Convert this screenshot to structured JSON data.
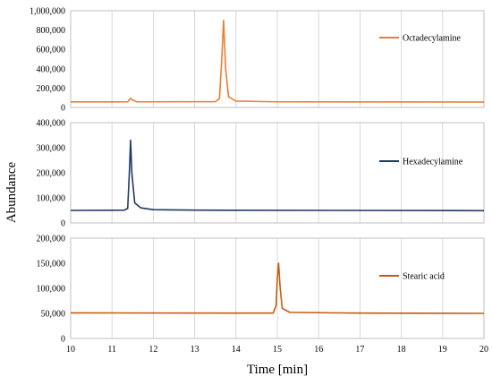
{
  "chart_data": {
    "type": "line",
    "xlabel": "Time [min]",
    "ylabel": "Abundance",
    "xlim": [
      10,
      20
    ],
    "x_ticks": [
      "10",
      "11",
      "12",
      "13",
      "14",
      "15",
      "16",
      "17",
      "18",
      "19",
      "20"
    ],
    "grid": {
      "vertical": true,
      "horizontal": false
    },
    "legend_position": "right",
    "panels": [
      {
        "series_name": "Octadecylamine",
        "color": "#ED7D31",
        "ylim": [
          0,
          1000000
        ],
        "y_ticks": [
          "0",
          "200,000",
          "400,000",
          "600,000",
          "800,000",
          "1,000,000"
        ],
        "points": [
          [
            10.0,
            57000
          ],
          [
            11.38,
            58000
          ],
          [
            11.45,
            95000
          ],
          [
            11.5,
            75000
          ],
          [
            11.6,
            58000
          ],
          [
            13.5,
            60000
          ],
          [
            13.6,
            90000
          ],
          [
            13.65,
            450000
          ],
          [
            13.7,
            900000
          ],
          [
            13.75,
            400000
          ],
          [
            13.82,
            110000
          ],
          [
            14.0,
            65000
          ],
          [
            15.0,
            58000
          ],
          [
            20.0,
            56000
          ]
        ]
      },
      {
        "series_name": "Hexadecylamine",
        "color": "#203864",
        "ylim": [
          0,
          400000
        ],
        "y_ticks": [
          "0",
          "100,000",
          "200,000",
          "300,000",
          "400,000"
        ],
        "points": [
          [
            10.0,
            50000
          ],
          [
            11.3,
            51000
          ],
          [
            11.38,
            58000
          ],
          [
            11.42,
            200000
          ],
          [
            11.45,
            330000
          ],
          [
            11.48,
            200000
          ],
          [
            11.55,
            80000
          ],
          [
            11.7,
            60000
          ],
          [
            12.0,
            53000
          ],
          [
            13.0,
            51000
          ],
          [
            20.0,
            49000
          ]
        ]
      },
      {
        "series_name": "Stearic acid",
        "color": "#C55A11",
        "ylim": [
          0,
          200000
        ],
        "y_ticks": [
          "0",
          "50,000",
          "100,000",
          "150,000",
          "200,000"
        ],
        "points": [
          [
            10.0,
            51000
          ],
          [
            14.9,
            50500
          ],
          [
            14.97,
            65000
          ],
          [
            15.0,
            120000
          ],
          [
            15.03,
            150000
          ],
          [
            15.07,
            100000
          ],
          [
            15.12,
            60000
          ],
          [
            15.3,
            52000
          ],
          [
            17.0,
            50500
          ],
          [
            20.0,
            50000
          ]
        ]
      }
    ]
  }
}
